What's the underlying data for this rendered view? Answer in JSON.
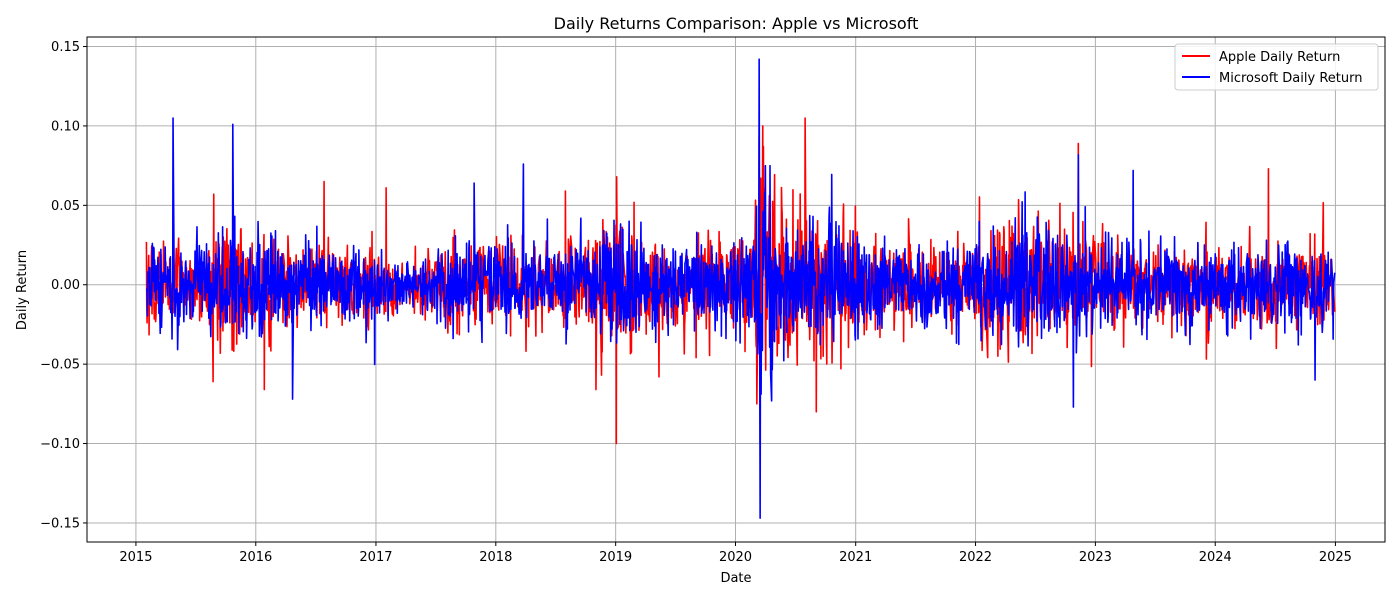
{
  "chart_data": {
    "type": "line",
    "title": "Daily Returns Comparison: Apple vs Microsoft",
    "xlabel": "Date",
    "ylabel": "Daily Return",
    "xlim": [
      "2014-08-05",
      "2025-06-01"
    ],
    "ylim": [
      -0.162,
      0.156
    ],
    "x_ticks": [
      "2015",
      "2016",
      "2017",
      "2018",
      "2019",
      "2020",
      "2021",
      "2022",
      "2023",
      "2024",
      "2025"
    ],
    "y_ticks": [
      "0.15",
      "0.10",
      "0.05",
      "0.00",
      "−0.05",
      "−0.10",
      "−0.15"
    ],
    "y_tick_values": [
      0.15,
      0.1,
      0.05,
      0.0,
      -0.05,
      -0.1,
      -0.15
    ],
    "grid": true,
    "legend_position": "top-right",
    "x_start": "2015-02-02",
    "x_end": "2024-12-30",
    "series": [
      {
        "name": "Apple Daily Return",
        "color": "#ff0000",
        "notable_points": [
          {
            "date": "2015-08-24",
            "value": -0.061
          },
          {
            "date": "2015-08-26",
            "value": 0.057
          },
          {
            "date": "2016-01-27",
            "value": -0.066
          },
          {
            "date": "2016-07-27",
            "value": 0.065
          },
          {
            "date": "2017-02-01",
            "value": 0.061
          },
          {
            "date": "2018-08-01",
            "value": 0.059
          },
          {
            "date": "2018-11-02",
            "value": -0.066
          },
          {
            "date": "2019-01-03",
            "value": -0.1
          },
          {
            "date": "2019-01-04",
            "value": 0.068
          },
          {
            "date": "2019-05-13",
            "value": -0.058
          },
          {
            "date": "2020-03-13",
            "value": 0.093
          },
          {
            "date": "2020-03-16",
            "value": -0.1
          },
          {
            "date": "2020-03-24",
            "value": 0.1
          },
          {
            "date": "2020-03-26",
            "value": 0.087
          },
          {
            "date": "2020-07-31",
            "value": 0.105
          },
          {
            "date": "2020-09-03",
            "value": -0.08
          },
          {
            "date": "2022-11-10",
            "value": 0.089
          },
          {
            "date": "2024-06-11",
            "value": 0.073
          }
        ]
      },
      {
        "name": "Microsoft Daily Return",
        "color": "#0000ff",
        "notable_points": [
          {
            "date": "2015-04-24",
            "value": 0.105
          },
          {
            "date": "2015-10-23",
            "value": 0.101
          },
          {
            "date": "2016-04-22",
            "value": -0.072
          },
          {
            "date": "2017-10-27",
            "value": 0.064
          },
          {
            "date": "2018-03-26",
            "value": 0.076
          },
          {
            "date": "2020-03-13",
            "value": 0.142
          },
          {
            "date": "2020-03-16",
            "value": -0.147
          },
          {
            "date": "2022-10-26",
            "value": -0.077
          },
          {
            "date": "2022-11-10",
            "value": 0.082
          },
          {
            "date": "2023-04-26",
            "value": 0.072
          },
          {
            "date": "2024-10-31",
            "value": -0.06
          }
        ]
      }
    ]
  }
}
